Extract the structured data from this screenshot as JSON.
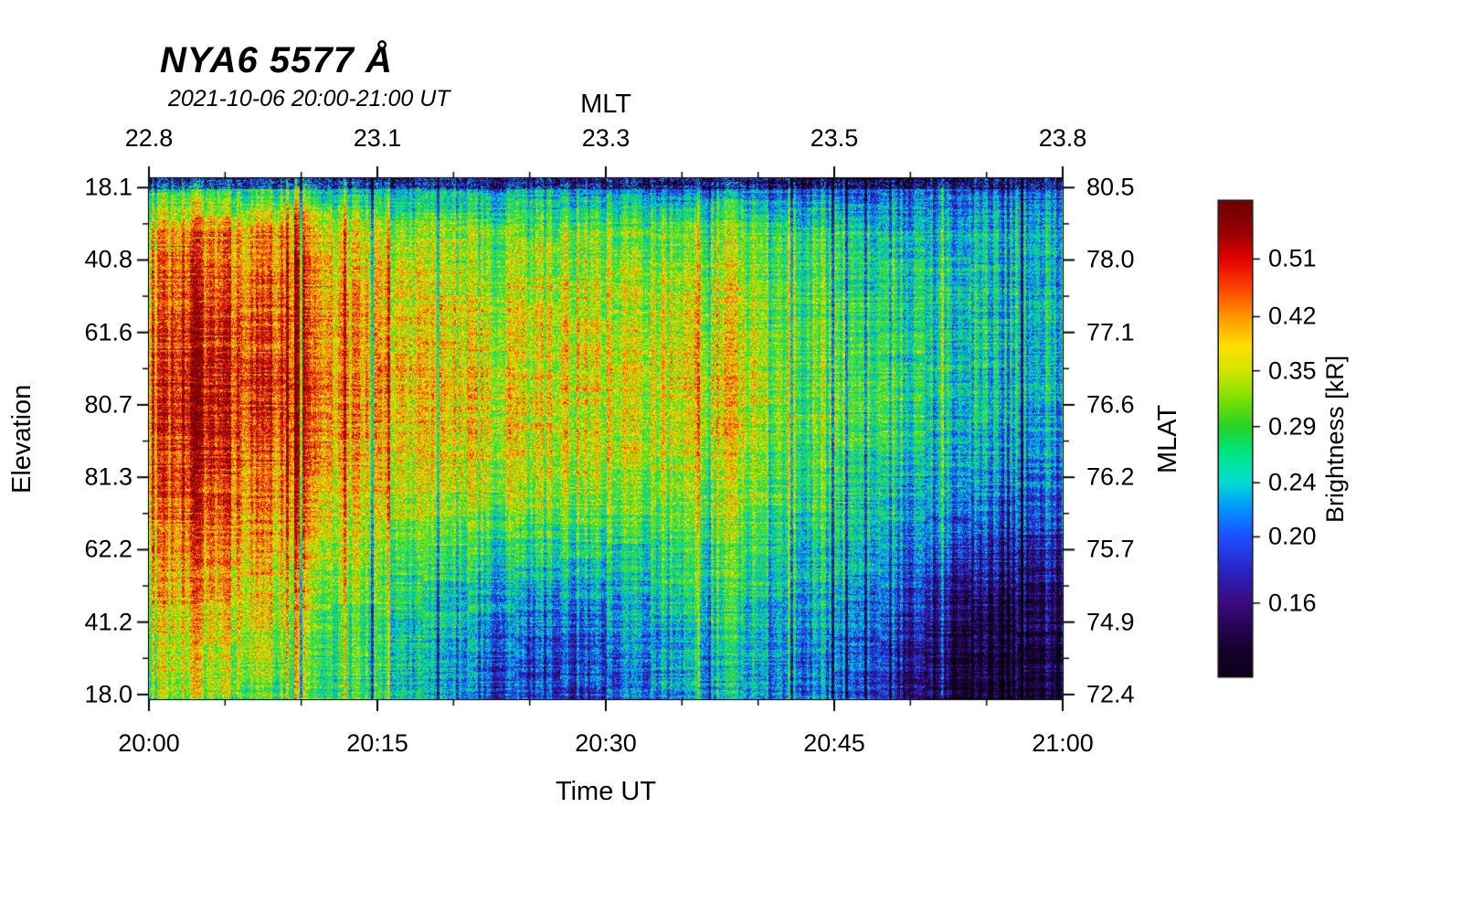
{
  "title": "NYA6 5577 Å",
  "subtitle": "2021-10-06 20:00-21:00 UT",
  "axes": {
    "top": {
      "label": "MLT",
      "ticks": [
        "22.8",
        "23.1",
        "23.3",
        "23.5",
        "23.8"
      ],
      "fractions": [
        0,
        0.25,
        0.5,
        0.75,
        1
      ]
    },
    "bottom": {
      "label": "Time UT",
      "ticks": [
        "20:00",
        "20:15",
        "20:30",
        "20:45",
        "21:00"
      ],
      "fractions": [
        0,
        0.25,
        0.5,
        0.75,
        1
      ]
    },
    "left": {
      "label": "Elevation",
      "ticks": [
        "18.1",
        "40.8",
        "61.6",
        "80.7",
        "81.3",
        "62.2",
        "41.2",
        "18.0"
      ]
    },
    "right": {
      "label": "MLAT",
      "ticks": [
        "80.5",
        "78.0",
        "77.1",
        "76.6",
        "76.2",
        "75.7",
        "74.9",
        "72.4"
      ]
    }
  },
  "colorbar": {
    "label": "Brightness [kR]",
    "tick_values": [
      0.51,
      0.42,
      0.35,
      0.29,
      0.24,
      0.2,
      0.16
    ],
    "scale": "log",
    "vmin": 0.125,
    "vmax": 0.62
  },
  "chart_data": {
    "type": "heatmap",
    "title": "NYA6 5577 Å",
    "subtitle": "2021-10-06 20:00-21:00 UT",
    "xlabel": "Time UT",
    "ylabel": "Elevation",
    "y2label": "MLAT",
    "value_label": "Brightness [kR]",
    "x_range_ut": [
      "20:00",
      "21:00"
    ],
    "x_ticks_ut": [
      "20:00",
      "20:15",
      "20:30",
      "20:45",
      "21:00"
    ],
    "mlt_ticks": [
      22.8,
      23.1,
      23.3,
      23.5,
      23.8
    ],
    "elevation_ticks_top_to_bottom": [
      18.1,
      40.8,
      61.6,
      80.7,
      81.3,
      62.2,
      41.2,
      18.0
    ],
    "mlat_ticks_top_to_bottom": [
      80.5,
      78.0,
      77.1,
      76.6,
      76.2,
      75.7,
      74.9,
      72.4
    ],
    "grid_note": "approx mean brightness kR; rows span plot top-to-bottom (north horizon 18.1 deg through zenith to south horizon 18.0 deg), cols span 20:00-21:00 UT at 3-min steps",
    "grid_kR": [
      [
        0.22,
        0.24,
        0.22,
        0.23,
        0.21,
        0.2,
        0.21,
        0.2,
        0.2,
        0.2,
        0.2,
        0.19,
        0.2,
        0.19,
        0.18,
        0.17,
        0.18,
        0.19,
        0.19,
        0.19
      ],
      [
        0.38,
        0.44,
        0.4,
        0.42,
        0.36,
        0.33,
        0.33,
        0.31,
        0.31,
        0.32,
        0.31,
        0.31,
        0.32,
        0.3,
        0.28,
        0.24,
        0.24,
        0.24,
        0.24,
        0.23
      ],
      [
        0.42,
        0.5,
        0.44,
        0.46,
        0.39,
        0.36,
        0.35,
        0.34,
        0.34,
        0.35,
        0.34,
        0.34,
        0.35,
        0.32,
        0.29,
        0.26,
        0.25,
        0.25,
        0.24,
        0.23
      ],
      [
        0.44,
        0.53,
        0.46,
        0.48,
        0.41,
        0.38,
        0.37,
        0.36,
        0.35,
        0.37,
        0.35,
        0.36,
        0.37,
        0.33,
        0.3,
        0.27,
        0.26,
        0.26,
        0.25,
        0.24
      ],
      [
        0.46,
        0.56,
        0.48,
        0.5,
        0.42,
        0.39,
        0.38,
        0.37,
        0.36,
        0.38,
        0.36,
        0.37,
        0.38,
        0.34,
        0.31,
        0.28,
        0.26,
        0.25,
        0.24,
        0.23
      ],
      [
        0.46,
        0.55,
        0.47,
        0.48,
        0.41,
        0.38,
        0.37,
        0.36,
        0.36,
        0.37,
        0.36,
        0.36,
        0.37,
        0.33,
        0.3,
        0.27,
        0.25,
        0.24,
        0.23,
        0.22
      ],
      [
        0.43,
        0.5,
        0.44,
        0.44,
        0.38,
        0.35,
        0.34,
        0.33,
        0.33,
        0.34,
        0.33,
        0.33,
        0.34,
        0.31,
        0.28,
        0.25,
        0.23,
        0.22,
        0.21,
        0.2
      ],
      [
        0.4,
        0.46,
        0.41,
        0.4,
        0.34,
        0.31,
        0.3,
        0.28,
        0.27,
        0.28,
        0.28,
        0.29,
        0.3,
        0.28,
        0.26,
        0.23,
        0.21,
        0.19,
        0.18,
        0.17
      ],
      [
        0.37,
        0.42,
        0.38,
        0.36,
        0.31,
        0.28,
        0.26,
        0.24,
        0.22,
        0.23,
        0.24,
        0.26,
        0.27,
        0.26,
        0.24,
        0.21,
        0.18,
        0.16,
        0.15,
        0.15
      ],
      [
        0.33,
        0.37,
        0.34,
        0.32,
        0.28,
        0.26,
        0.24,
        0.21,
        0.19,
        0.2,
        0.22,
        0.24,
        0.25,
        0.24,
        0.22,
        0.19,
        0.16,
        0.14,
        0.14,
        0.14
      ],
      [
        0.3,
        0.33,
        0.31,
        0.3,
        0.27,
        0.25,
        0.23,
        0.2,
        0.18,
        0.19,
        0.21,
        0.23,
        0.24,
        0.23,
        0.21,
        0.18,
        0.15,
        0.13,
        0.13,
        0.13
      ]
    ],
    "colormap_stops": [
      [
        0.1,
        "#000000"
      ],
      [
        0.135,
        "#140028"
      ],
      [
        0.16,
        "#3c0a82"
      ],
      [
        0.18,
        "#2828c8"
      ],
      [
        0.2,
        "#1e50ff"
      ],
      [
        0.22,
        "#0096ff"
      ],
      [
        0.24,
        "#00dcd2"
      ],
      [
        0.265,
        "#00e682"
      ],
      [
        0.29,
        "#28d228"
      ],
      [
        0.32,
        "#82e100"
      ],
      [
        0.35,
        "#d2e600"
      ],
      [
        0.38,
        "#ffe100"
      ],
      [
        0.42,
        "#ff9600"
      ],
      [
        0.46,
        "#ff4600"
      ],
      [
        0.51,
        "#e60000"
      ],
      [
        0.56,
        "#960000"
      ],
      [
        0.62,
        "#6e0000"
      ]
    ]
  }
}
